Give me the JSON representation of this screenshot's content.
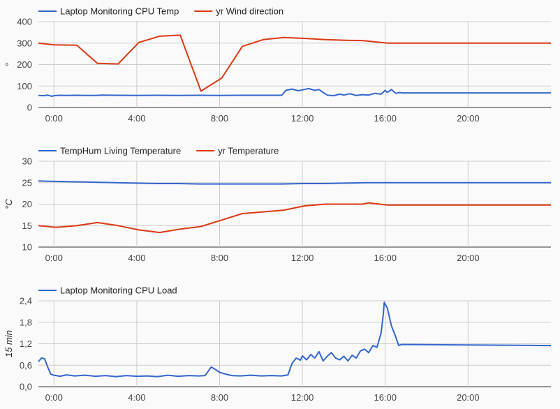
{
  "x_tick_labels": [
    "0:00",
    "4:00",
    "8:00",
    "12:00",
    "16:00",
    "20:00"
  ],
  "chart_data": [
    {
      "type": "line",
      "ylabel": "°",
      "ylim": [
        0,
        400
      ],
      "y_ticks": [
        "0",
        "100",
        "200",
        "300",
        "400"
      ],
      "xlim": [
        -0.75,
        24
      ],
      "x_ticks": [
        0,
        4,
        8,
        12,
        16,
        20
      ],
      "legend_position": "top-left",
      "grid": true,
      "series": [
        {
          "name": "Laptop Monitoring CPU Temp",
          "color": "#3366cc",
          "points": [
            [
              -0.75,
              56
            ],
            [
              -0.5,
              55
            ],
            [
              -0.3,
              58
            ],
            [
              -0.1,
              52
            ],
            [
              0.0,
              55
            ],
            [
              0.3,
              57
            ],
            [
              0.6,
              56
            ],
            [
              1.0,
              57
            ],
            [
              2.0,
              56
            ],
            [
              2.3,
              58
            ],
            [
              3.0,
              57
            ],
            [
              4.0,
              56
            ],
            [
              5.0,
              57
            ],
            [
              6.0,
              56
            ],
            [
              7.0,
              57
            ],
            [
              8.0,
              56
            ],
            [
              9.0,
              57
            ],
            [
              10.0,
              57
            ],
            [
              11.0,
              57
            ],
            [
              11.2,
              80
            ],
            [
              11.5,
              86
            ],
            [
              11.8,
              78
            ],
            [
              12.0,
              82
            ],
            [
              12.3,
              88
            ],
            [
              12.6,
              80
            ],
            [
              12.8,
              84
            ],
            [
              13.0,
              70
            ],
            [
              13.2,
              58
            ],
            [
              13.5,
              55
            ],
            [
              13.8,
              62
            ],
            [
              14.0,
              58
            ],
            [
              14.3,
              64
            ],
            [
              14.6,
              56
            ],
            [
              14.9,
              60
            ],
            [
              15.2,
              58
            ],
            [
              15.5,
              66
            ],
            [
              15.8,
              62
            ],
            [
              16.0,
              80
            ],
            [
              16.1,
              70
            ],
            [
              16.3,
              84
            ],
            [
              16.5,
              66
            ],
            [
              16.7,
              70
            ],
            [
              16.8,
              68
            ],
            [
              24.0,
              68
            ]
          ]
        },
        {
          "name": "yr Wind direction",
          "color": "#dc3912",
          "points": [
            [
              -0.75,
              300
            ],
            [
              0.0,
              292
            ],
            [
              1.1,
              290
            ],
            [
              2.1,
              206
            ],
            [
              3.1,
              203
            ],
            [
              4.1,
              303
            ],
            [
              5.1,
              332
            ],
            [
              6.1,
              337
            ],
            [
              7.1,
              76
            ],
            [
              8.1,
              137
            ],
            [
              9.1,
              285
            ],
            [
              10.1,
              316
            ],
            [
              11.1,
              326
            ],
            [
              12.1,
              322
            ],
            [
              13.1,
              316
            ],
            [
              14.1,
              313
            ],
            [
              14.9,
              312
            ],
            [
              16.1,
              300
            ],
            [
              24.0,
              300
            ]
          ]
        }
      ]
    },
    {
      "type": "line",
      "ylabel": "°C",
      "ylim": [
        10,
        30
      ],
      "y_ticks": [
        "10",
        "15",
        "20",
        "25",
        "30"
      ],
      "xlim": [
        -0.75,
        24
      ],
      "x_ticks": [
        0,
        4,
        8,
        12,
        16,
        20
      ],
      "legend_position": "top-left",
      "grid": true,
      "series": [
        {
          "name": "TempHum Living Temperature",
          "color": "#3366cc",
          "points": [
            [
              -0.75,
              25.4
            ],
            [
              0.0,
              25.3
            ],
            [
              1.0,
              25.2
            ],
            [
              2.0,
              25.1
            ],
            [
              3.0,
              25.0
            ],
            [
              4.0,
              24.9
            ],
            [
              5.0,
              24.8
            ],
            [
              6.0,
              24.8
            ],
            [
              7.0,
              24.7
            ],
            [
              8.0,
              24.7
            ],
            [
              9.0,
              24.7
            ],
            [
              10.0,
              24.7
            ],
            [
              11.0,
              24.7
            ],
            [
              12.0,
              24.8
            ],
            [
              13.0,
              24.8
            ],
            [
              14.0,
              24.9
            ],
            [
              15.0,
              25.0
            ],
            [
              16.0,
              25.0
            ],
            [
              16.8,
              25.0
            ],
            [
              24.0,
              25.0
            ]
          ]
        },
        {
          "name": "yr Temperature",
          "color": "#dc3912",
          "points": [
            [
              -0.75,
              15.0
            ],
            [
              0.1,
              14.6
            ],
            [
              1.1,
              15.0
            ],
            [
              2.1,
              15.7
            ],
            [
              3.1,
              15.0
            ],
            [
              4.1,
              14.0
            ],
            [
              5.1,
              13.4
            ],
            [
              6.1,
              14.2
            ],
            [
              7.1,
              14.8
            ],
            [
              8.1,
              16.3
            ],
            [
              9.1,
              17.8
            ],
            [
              10.1,
              18.2
            ],
            [
              11.1,
              18.6
            ],
            [
              12.1,
              19.6
            ],
            [
              13.1,
              20.0
            ],
            [
              14.1,
              20.0
            ],
            [
              14.9,
              20.0
            ],
            [
              15.2,
              20.3
            ],
            [
              16.1,
              19.8
            ],
            [
              24.0,
              19.8
            ]
          ]
        }
      ]
    },
    {
      "type": "line",
      "ylabel": "15 min",
      "ylim": [
        0,
        2.4
      ],
      "y_ticks": [
        "0,0",
        "0,6",
        "1,2",
        "1,8",
        "2,4"
      ],
      "xlim": [
        -0.75,
        24
      ],
      "x_ticks": [
        0,
        4,
        8,
        12,
        16,
        20
      ],
      "legend_position": "top-left",
      "grid": true,
      "series": [
        {
          "name": "Laptop Monitoring CPU Load",
          "color": "#3366cc",
          "points": [
            [
              -0.75,
              0.7
            ],
            [
              -0.6,
              0.8
            ],
            [
              -0.45,
              0.78
            ],
            [
              -0.3,
              0.55
            ],
            [
              -0.15,
              0.35
            ],
            [
              0.0,
              0.32
            ],
            [
              0.3,
              0.29
            ],
            [
              0.6,
              0.33
            ],
            [
              1.0,
              0.3
            ],
            [
              1.5,
              0.32
            ],
            [
              2.0,
              0.29
            ],
            [
              2.5,
              0.31
            ],
            [
              3.0,
              0.28
            ],
            [
              3.5,
              0.31
            ],
            [
              4.0,
              0.29
            ],
            [
              4.5,
              0.3
            ],
            [
              5.0,
              0.28
            ],
            [
              5.5,
              0.32
            ],
            [
              6.0,
              0.29
            ],
            [
              6.5,
              0.31
            ],
            [
              7.0,
              0.3
            ],
            [
              7.3,
              0.31
            ],
            [
              7.6,
              0.55
            ],
            [
              7.8,
              0.48
            ],
            [
              8.0,
              0.4
            ],
            [
              8.3,
              0.35
            ],
            [
              8.6,
              0.31
            ],
            [
              9.0,
              0.3
            ],
            [
              9.5,
              0.32
            ],
            [
              10.0,
              0.3
            ],
            [
              10.5,
              0.31
            ],
            [
              11.0,
              0.3
            ],
            [
              11.3,
              0.33
            ],
            [
              11.5,
              0.65
            ],
            [
              11.7,
              0.8
            ],
            [
              11.9,
              0.74
            ],
            [
              12.0,
              0.86
            ],
            [
              12.2,
              0.75
            ],
            [
              12.4,
              0.9
            ],
            [
              12.6,
              0.8
            ],
            [
              12.8,
              0.98
            ],
            [
              13.0,
              0.72
            ],
            [
              13.2,
              0.85
            ],
            [
              13.4,
              0.95
            ],
            [
              13.6,
              0.8
            ],
            [
              13.8,
              0.75
            ],
            [
              14.0,
              0.85
            ],
            [
              14.2,
              0.72
            ],
            [
              14.4,
              0.88
            ],
            [
              14.6,
              0.8
            ],
            [
              14.8,
              1.0
            ],
            [
              15.0,
              1.05
            ],
            [
              15.2,
              0.95
            ],
            [
              15.4,
              1.15
            ],
            [
              15.6,
              1.1
            ],
            [
              15.8,
              1.5
            ],
            [
              15.9,
              2.0
            ],
            [
              15.95,
              2.36
            ],
            [
              16.1,
              2.2
            ],
            [
              16.3,
              1.7
            ],
            [
              16.5,
              1.4
            ],
            [
              16.65,
              1.15
            ],
            [
              16.8,
              1.18
            ],
            [
              24.0,
              1.15
            ]
          ]
        }
      ]
    }
  ]
}
